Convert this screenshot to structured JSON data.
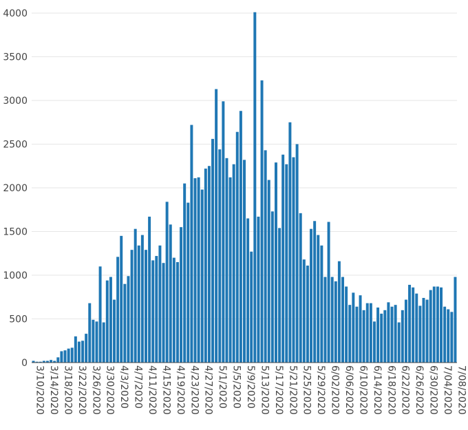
{
  "chart_data": {
    "type": "bar",
    "title": "",
    "xlabel": "",
    "ylabel": "",
    "ylim": [
      0,
      4000
    ],
    "yticks": [
      0,
      500,
      1000,
      1500,
      2000,
      2500,
      3000,
      3500,
      4000
    ],
    "grid": true,
    "legend": "none",
    "bar_color": "#1f77b4",
    "start_date": "2020-03-10",
    "x_tick_labels": [
      "3/10/2020",
      "3/14/2020",
      "3/18/2020",
      "3/22/2020",
      "3/26/2020",
      "3/30/2020",
      "4/3/2020",
      "4/7/2020",
      "4/11/2020",
      "4/15/2020",
      "4/19/2020",
      "4/23/2020",
      "4/27/2020",
      "5/1/2020",
      "5/5/2020",
      "5/9/2020",
      "5/13/2020",
      "5/17/2020",
      "5/21/2020",
      "5/25/2020",
      "5/29/2020",
      "6/02/2020",
      "6/06/2020",
      "6/10/2020",
      "6/14/2020",
      "6/18/2020",
      "6/22/2020",
      "6/26/2020",
      "6/30/2020",
      "7/04/2020",
      "7/08/2020"
    ],
    "values": [
      20,
      10,
      10,
      20,
      20,
      30,
      20,
      60,
      130,
      140,
      160,
      170,
      300,
      240,
      250,
      330,
      680,
      490,
      470,
      1100,
      460,
      940,
      980,
      720,
      1210,
      1450,
      900,
      990,
      1290,
      1530,
      1340,
      1460,
      1290,
      1670,
      1170,
      1220,
      1340,
      1140,
      1840,
      1580,
      1200,
      1150,
      1550,
      2050,
      1830,
      2720,
      2110,
      2120,
      1980,
      2220,
      2250,
      2560,
      3130,
      2440,
      2990,
      2340,
      2120,
      2270,
      2640,
      2880,
      2320,
      1650,
      1270,
      4010,
      1670,
      3230,
      2430,
      2090,
      1730,
      2290,
      1540,
      2380,
      2270,
      2750,
      2350,
      2500,
      1710,
      1180,
      1110,
      1530,
      1620,
      1460,
      1340,
      980,
      1610,
      980,
      930,
      1160,
      980,
      870,
      660,
      800,
      640,
      770,
      600,
      680,
      680,
      470,
      630,
      560,
      600,
      690,
      640,
      660,
      460,
      600,
      720,
      890,
      860,
      790,
      650,
      740,
      720,
      830,
      870,
      870,
      860,
      640,
      610,
      580,
      980
    ]
  }
}
